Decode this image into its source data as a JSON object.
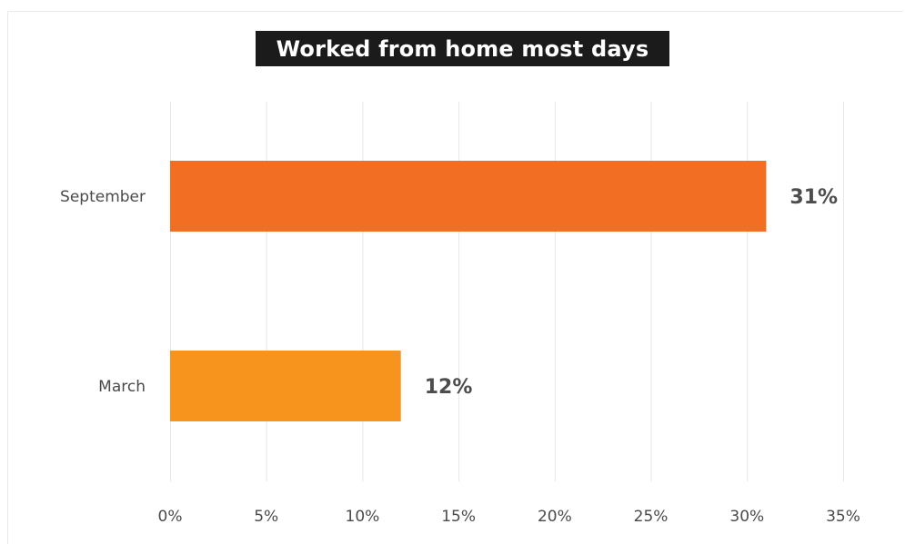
{
  "chart_data": {
    "type": "bar",
    "orientation": "horizontal",
    "title": "Worked from home most days",
    "xlabel": "",
    "ylabel": "",
    "categories": [
      "September",
      "March"
    ],
    "values": [
      31,
      12
    ],
    "value_labels": [
      "31%",
      "12%"
    ],
    "bar_colors": [
      "#f26e22",
      "#f7941d"
    ],
    "xlim": [
      0,
      35
    ],
    "x_ticks": [
      0,
      5,
      10,
      15,
      20,
      25,
      30,
      35
    ],
    "x_tick_labels": [
      "0%",
      "5%",
      "10%",
      "15%",
      "20%",
      "25%",
      "30%",
      "35%"
    ],
    "grid": true,
    "legend": "none",
    "colors": {
      "title_background": "#1b1b1b",
      "title_text": "#ffffff",
      "gridline": "#e6e6e6",
      "label_text": "#4a4a4a",
      "value_text": "#4d4d4d"
    }
  }
}
